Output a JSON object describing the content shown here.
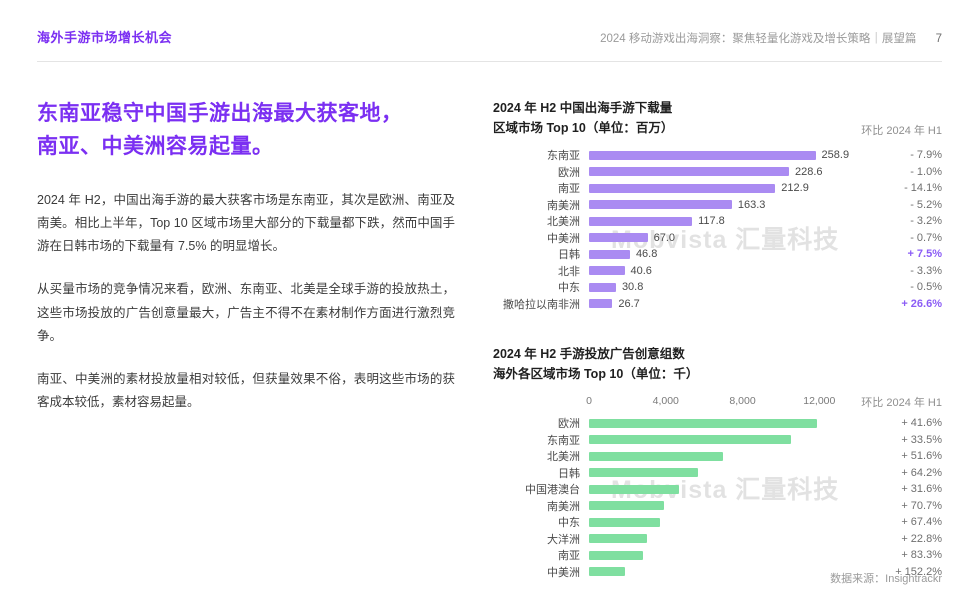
{
  "colors": {
    "accent": "#7B2FF2",
    "positive": "#8B5CF6",
    "bar_purple": "#AA8BF2",
    "bar_green": "#7FDFA0"
  },
  "header": {
    "left_title": "海外手游市场增长机会",
    "right_title": "2024 移动游戏出海洞察：聚焦轻量化游戏及增长策略｜展望篇",
    "page_number": "7"
  },
  "left": {
    "headline_line1": "东南亚稳守中国手游出海最大获客地，",
    "headline_line2": "南亚、中美洲容易起量。",
    "paragraphs": [
      "2024 年 H2，中国出海手游的最大获客市场是东南亚，其次是欧洲、南亚及南美。相比上半年，Top 10 区域市场里大部分的下载量都下跌，然而中国手游在日韩市场的下载量有 7.5% 的明显增长。",
      "从买量市场的竞争情况来看，欧洲、东南亚、北美是全球手游的投放热土，这些市场投放的广告创意量最大，广告主不得不在素材制作方面进行激烈竞争。",
      "南亚、中美洲的素材投放量相对较低，但获量效果不俗，表明这些市场的获客成本较低，素材容易起量。"
    ]
  },
  "watermark": "Mobvista 汇量科技",
  "footer": {
    "source": "数据来源：Insightrackr"
  },
  "chart_data": [
    {
      "type": "bar",
      "orientation": "horizontal",
      "title_line1": "2024 年 H2 中国出海手游下载量",
      "title_line2": "区域市场 Top 10（单位：百万）",
      "comparison_label": "环比 2024 年 H1",
      "bar_color": "#AA8BF2",
      "xmax": 272,
      "categories": [
        "东南亚",
        "欧洲",
        "南亚",
        "南美洲",
        "北美洲",
        "中美洲",
        "日韩",
        "北非",
        "中东",
        "撒哈拉以南非洲"
      ],
      "values": [
        258.9,
        228.6,
        212.9,
        163.3,
        117.8,
        67.0,
        46.8,
        40.6,
        30.8,
        26.7
      ],
      "value_labels": [
        "258.9",
        "228.6",
        "212.9",
        "163.3",
        "117.8",
        "67.0",
        "46.8",
        "40.6",
        "30.8",
        "26.7"
      ],
      "change_labels": [
        "- 7.9%",
        "- 1.0%",
        "- 14.1%",
        "- 5.2%",
        "- 3.2%",
        "- 0.7%",
        "+ 7.5%",
        "- 3.3%",
        "- 0.5%",
        "+ 26.6%"
      ],
      "change_positive": [
        false,
        false,
        false,
        false,
        false,
        false,
        true,
        false,
        false,
        true
      ]
    },
    {
      "type": "bar",
      "orientation": "horizontal",
      "title_line1": "2024 年 H2 手游投放广告创意组数",
      "title_line2": "海外各区域市场 Top 10（单位：千）",
      "comparison_label": "环比 2024 年 H1",
      "bar_color": "#7FDFA0",
      "xmax": 12400,
      "axis_ticks": [
        "0",
        "4,000",
        "8,000",
        "12,000"
      ],
      "axis_tick_values": [
        0,
        4000,
        8000,
        12000
      ],
      "categories": [
        "欧洲",
        "东南亚",
        "北美洲",
        "日韩",
        "中国港澳台",
        "南美洲",
        "中东",
        "大洋洲",
        "南亚",
        "中美洲"
      ],
      "values": [
        11900,
        10500,
        7000,
        5700,
        4700,
        3900,
        3700,
        3000,
        2800,
        1900
      ],
      "change_labels": [
        "+ 41.6%",
        "+ 33.5%",
        "+ 51.6%",
        "+ 64.2%",
        "+ 31.6%",
        "+ 70.7%",
        "+ 67.4%",
        "+ 22.8%",
        "+ 83.3%",
        "+ 152.2%"
      ]
    }
  ]
}
